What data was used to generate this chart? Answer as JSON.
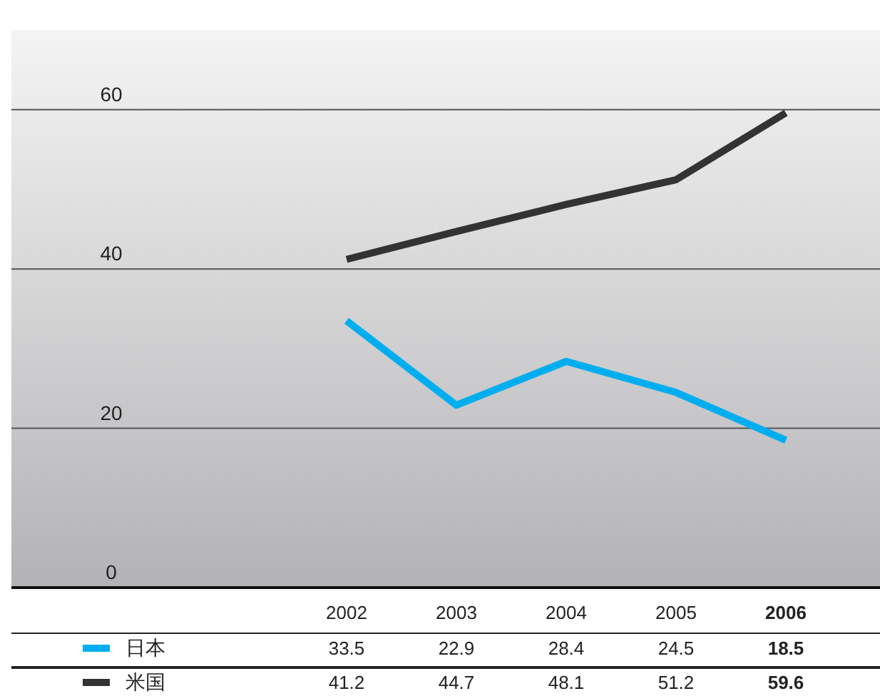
{
  "chart_data": {
    "type": "line",
    "categories": [
      "2002",
      "2003",
      "2004",
      "2005",
      "2006"
    ],
    "series": [
      {
        "name": "日本",
        "color": "#00aeef",
        "values": [
          33.5,
          22.9,
          28.4,
          24.5,
          18.5
        ]
      },
      {
        "name": "米国",
        "color": "#333333",
        "values": [
          41.2,
          44.7,
          48.1,
          51.2,
          59.6
        ]
      }
    ],
    "ylim": [
      0,
      70
    ],
    "yticks": [
      0,
      20,
      40,
      60
    ],
    "grid": "y",
    "legend": "bottom",
    "data_labels": true,
    "marker": "none",
    "line_style": "solid"
  }
}
